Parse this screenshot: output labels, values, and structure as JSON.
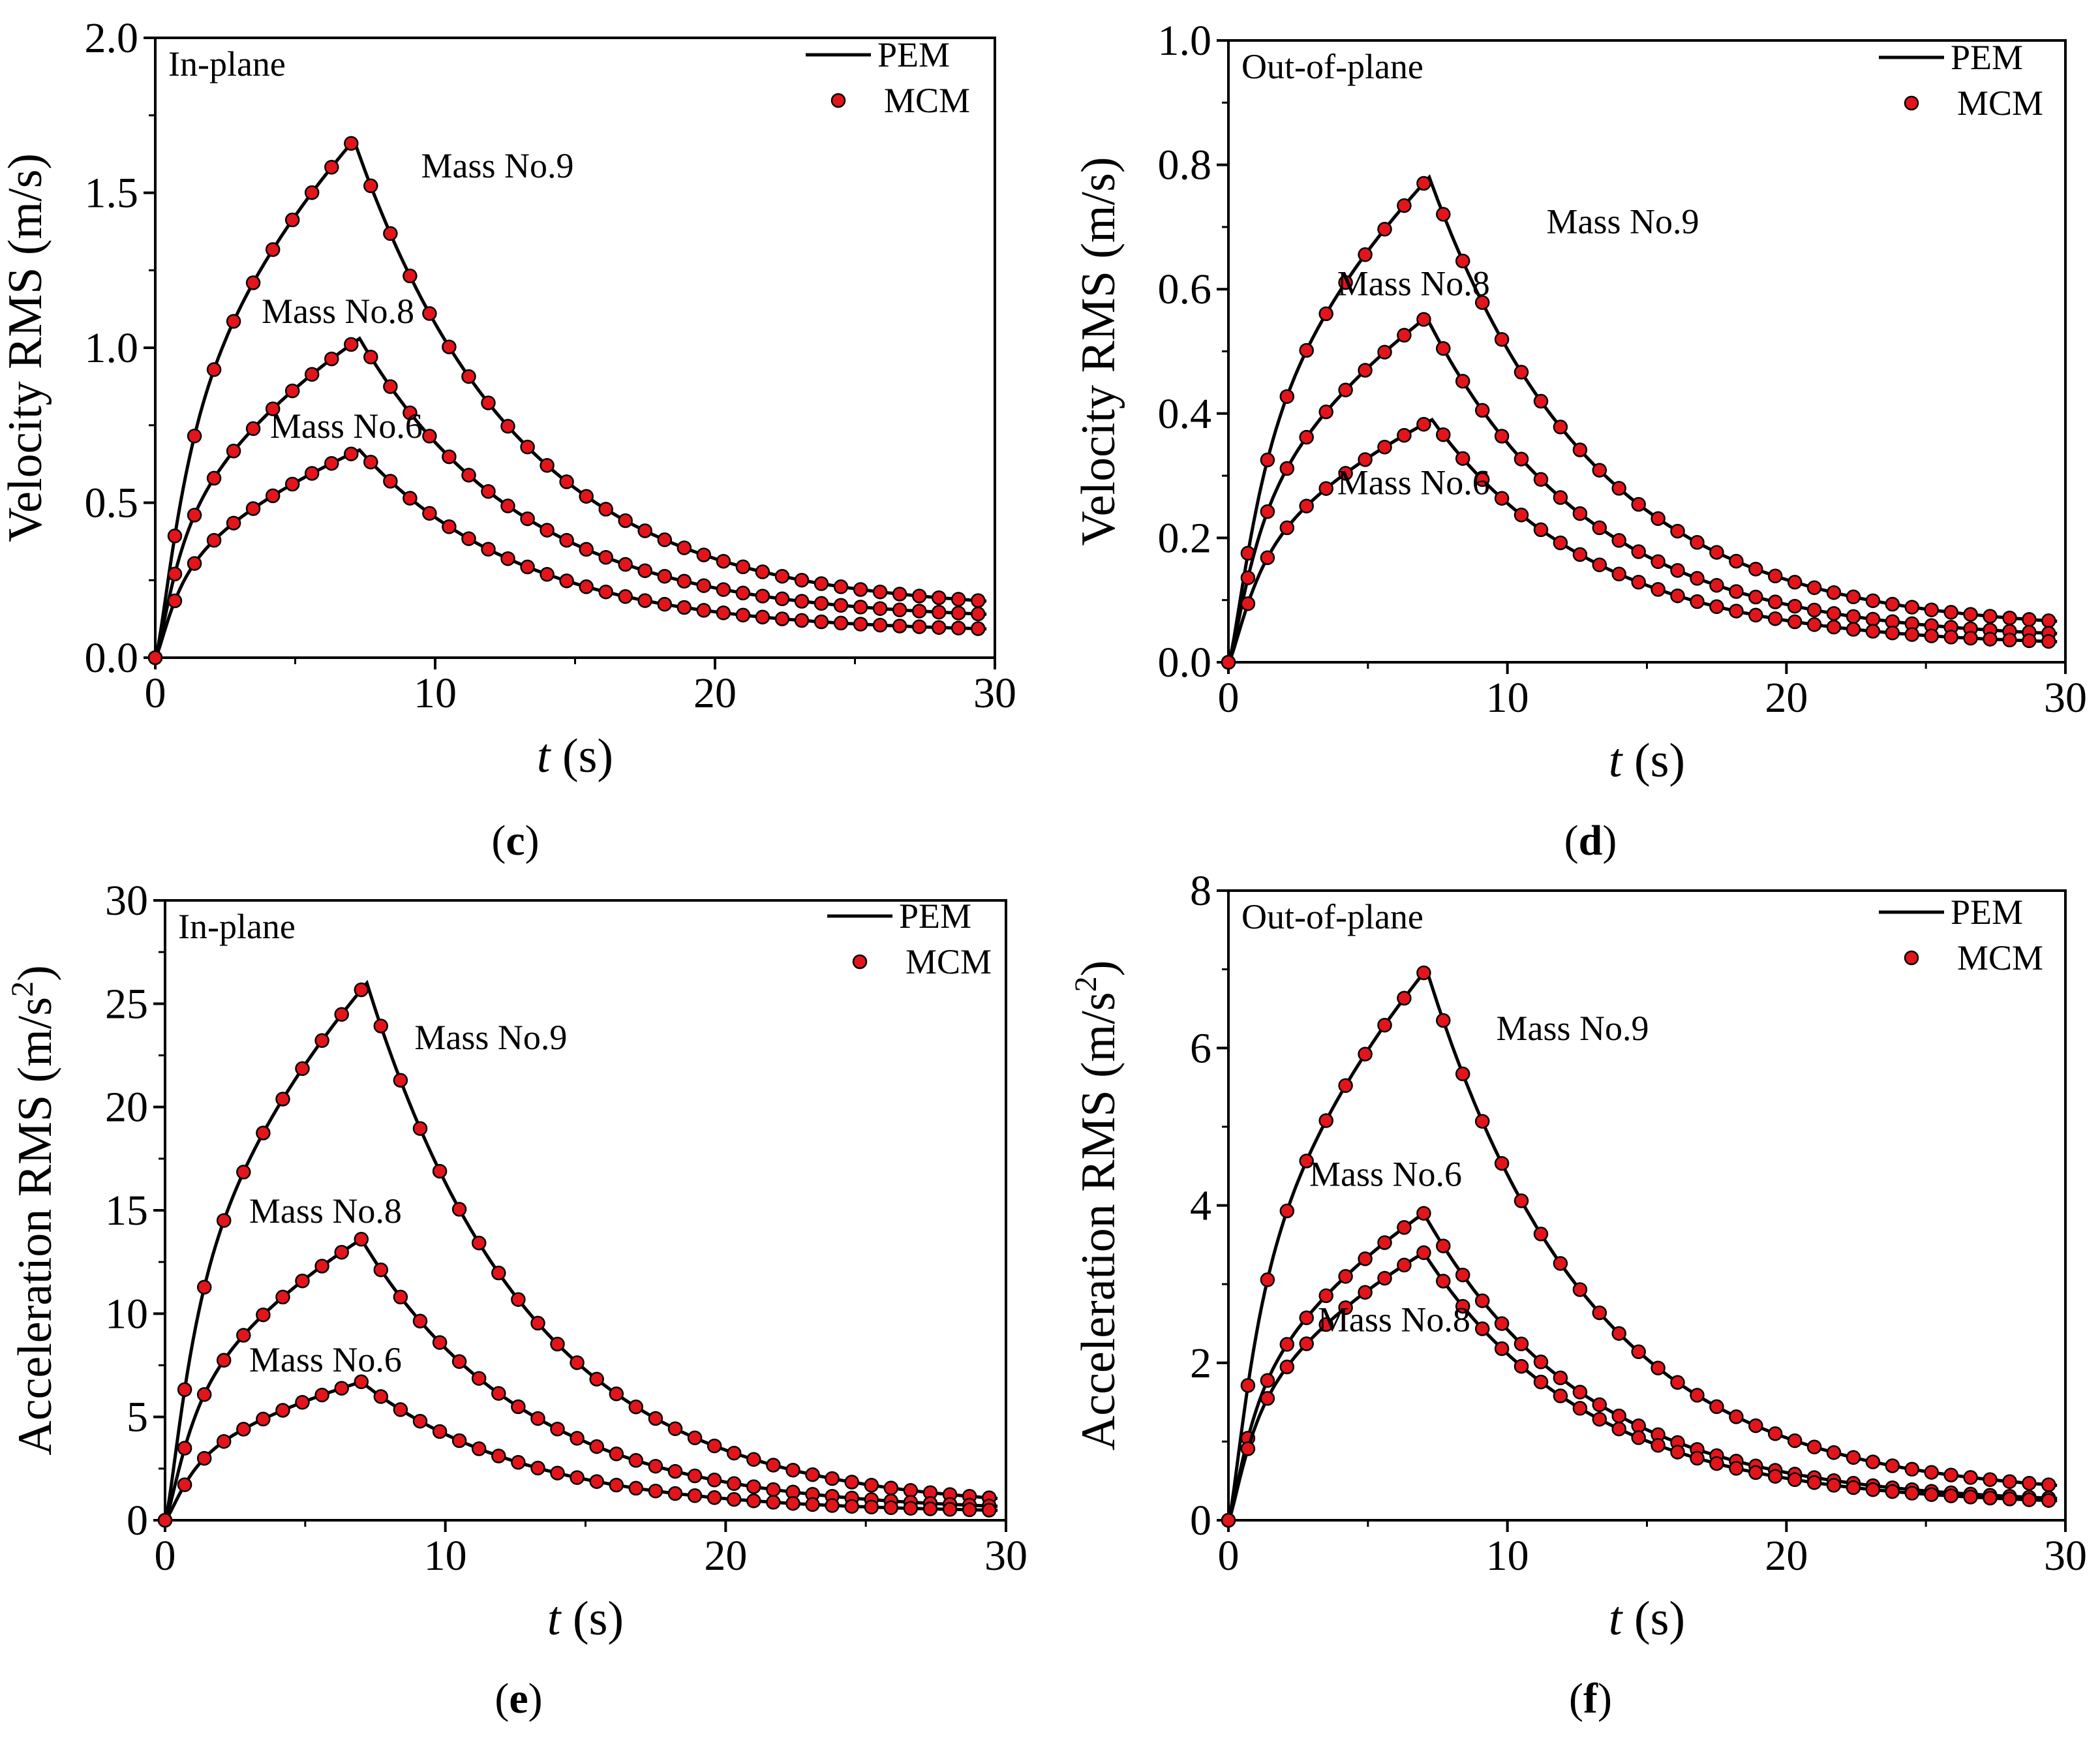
{
  "style": {
    "line_color": "#000000",
    "marker_fill": "#e4141b",
    "marker_edge": "#000000",
    "background": "#ffffff"
  },
  "legend": {
    "line_label": "PEM",
    "marker_label": "MCM"
  },
  "chart_data": [
    {
      "id": "c",
      "panel_label": "c",
      "type": "line",
      "title": "In-plane",
      "xlabel_italic": "t",
      "xlabel_unit": " (s)",
      "ylabel": "Velocity RMS (m/s)",
      "ylabel_sup": "",
      "xlim": [
        0,
        30
      ],
      "xticks": [
        0,
        10,
        20,
        30
      ],
      "xtick_labels": [
        "0",
        "10",
        "20",
        "30"
      ],
      "ylim": [
        0,
        2.0
      ],
      "yticks": [
        0,
        0.5,
        1.0,
        1.5,
        2.0
      ],
      "ytick_labels": [
        "0.0",
        "0.5",
        "1.0",
        "1.5",
        "2.0"
      ],
      "series": [
        {
          "name": "Mass No.9",
          "peak": 1.67,
          "tpeak": 7.1,
          "final": 0.15,
          "rise": 1.4,
          "label_text": "Mass No.9",
          "label_at": [
            9.5,
            1.55
          ]
        },
        {
          "name": "Mass No.8",
          "peak": 1.03,
          "tpeak": 7.3,
          "final": 0.12,
          "rise": 1.1,
          "label_text": "Mass No.8",
          "label_at": [
            3.8,
            1.08
          ]
        },
        {
          "name": "Mass No.6",
          "peak": 0.67,
          "tpeak": 7.3,
          "final": 0.08,
          "rise": 1.0,
          "label_text": "Mass No.6",
          "label_at": [
            4.1,
            0.71
          ]
        }
      ]
    },
    {
      "id": "d",
      "panel_label": "d",
      "type": "line",
      "title": "Out-of-plane",
      "xlabel_italic": "t",
      "xlabel_unit": " (s)",
      "ylabel": "Velocity RMS (m/s)",
      "ylabel_sup": "",
      "xlim": [
        0,
        30
      ],
      "xticks": [
        0,
        10,
        20,
        30
      ],
      "xtick_labels": [
        "0",
        "10",
        "20",
        "30"
      ],
      "ylim": [
        0,
        1.0
      ],
      "yticks": [
        0,
        0.2,
        0.4,
        0.6,
        0.8,
        1.0
      ],
      "ytick_labels": [
        "0.0",
        "0.2",
        "0.4",
        "0.6",
        "0.8",
        "1.0"
      ],
      "series": [
        {
          "name": "Mass No.9",
          "peak": 0.78,
          "tpeak": 7.2,
          "final": 0.05,
          "rise": 1.5,
          "label_text": "Mass No.9",
          "label_at": [
            11.4,
            0.69
          ]
        },
        {
          "name": "Mass No.8",
          "peak": 0.555,
          "tpeak": 7.1,
          "final": 0.035,
          "rise": 1.3,
          "label_text": "Mass No.8",
          "label_at": [
            3.9,
            0.59
          ]
        },
        {
          "name": "Mass No.6",
          "peak": 0.39,
          "tpeak": 7.3,
          "final": 0.025,
          "rise": 1.3,
          "label_text": "Mass No.6",
          "label_at": [
            3.9,
            0.27
          ]
        }
      ]
    },
    {
      "id": "e",
      "panel_label": "e",
      "type": "line",
      "title": "In-plane",
      "xlabel_italic": "t",
      "xlabel_unit": " (s)",
      "ylabel": "Acceleration RMS (m/s",
      "ylabel_sup": "2",
      "xlim": [
        0,
        30
      ],
      "xticks": [
        0,
        10,
        20,
        30
      ],
      "xtick_labels": [
        "0",
        "10",
        "20",
        "30"
      ],
      "ylim": [
        0,
        30
      ],
      "yticks": [
        0,
        5,
        10,
        15,
        20,
        25,
        30
      ],
      "ytick_labels": [
        "0",
        "5",
        "10",
        "15",
        "20",
        "25",
        "30"
      ],
      "series": [
        {
          "name": "Mass No.9",
          "peak": 26.0,
          "tpeak": 7.2,
          "final": 0.5,
          "rise": 1.3,
          "label_text": "Mass No.9",
          "label_at": [
            8.9,
            22.8
          ]
        },
        {
          "name": "Mass No.8",
          "peak": 13.6,
          "tpeak": 7.0,
          "final": 0.4,
          "rise": 1.2,
          "label_text": "Mass No.8",
          "label_at": [
            3.0,
            14.4
          ]
        },
        {
          "name": "Mass No.6",
          "peak": 6.7,
          "tpeak": 7.0,
          "final": 0.35,
          "rise": 1.2,
          "label_text": "Mass No.6",
          "label_at": [
            3.0,
            7.2
          ]
        }
      ]
    },
    {
      "id": "f",
      "panel_label": "f",
      "type": "line",
      "title": "Out-of-plane",
      "xlabel_italic": "t",
      "xlabel_unit": " (s)",
      "ylabel": "Acceleration RMS (m/s",
      "ylabel_sup": "2",
      "xlim": [
        0,
        30
      ],
      "xticks": [
        0,
        10,
        20,
        30
      ],
      "xtick_labels": [
        "0",
        "10",
        "20",
        "30"
      ],
      "ylim": [
        0,
        8
      ],
      "yticks": [
        0,
        2,
        4,
        6,
        8
      ],
      "ytick_labels": [
        "0",
        "2",
        "4",
        "6",
        "8"
      ],
      "series": [
        {
          "name": "Mass No.9",
          "peak": 7.0,
          "tpeak": 7.1,
          "final": 0.3,
          "rise": 1.3,
          "label_text": "Mass No.9",
          "label_at": [
            9.6,
            6.1
          ]
        },
        {
          "name": "Mass No.6",
          "peak": 3.9,
          "tpeak": 7.0,
          "final": 0.2,
          "rise": 1.1,
          "label_text": "Mass No.6",
          "label_at": [
            2.9,
            4.25
          ]
        },
        {
          "name": "Mass No.8",
          "peak": 3.4,
          "tpeak": 7.0,
          "final": 0.18,
          "rise": 1.1,
          "label_text": "Mass No.8",
          "label_at": [
            3.2,
            2.4
          ]
        }
      ]
    }
  ]
}
